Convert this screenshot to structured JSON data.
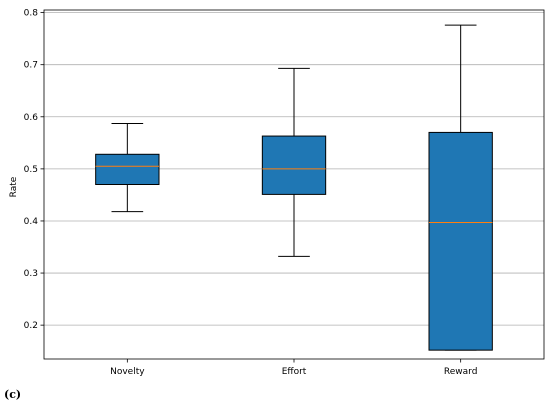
{
  "panel_label": "(c)",
  "chart_data": {
    "type": "boxplot",
    "title": "",
    "xlabel": "",
    "ylabel": "Rate",
    "ylim": [
      0.135,
      0.805
    ],
    "yticks": [
      "0.2",
      "0.3",
      "0.4",
      "0.5",
      "0.6",
      "0.7",
      "0.8"
    ],
    "grid": "horizontal",
    "box_color": "#1f77b4",
    "median_color": "#ff7f0e",
    "categories": [
      "Novelty",
      "Effort",
      "Reward"
    ],
    "boxes": [
      {
        "name": "Novelty",
        "whisker_low": 0.418,
        "q1": 0.47,
        "median": 0.505,
        "q3": 0.528,
        "whisker_high": 0.587
      },
      {
        "name": "Effort",
        "whisker_low": 0.332,
        "q1": 0.451,
        "median": 0.5,
        "q3": 0.563,
        "whisker_high": 0.693
      },
      {
        "name": "Reward",
        "whisker_low": 0.152,
        "q1": 0.152,
        "median": 0.397,
        "q3": 0.57,
        "whisker_high": 0.776
      }
    ]
  }
}
